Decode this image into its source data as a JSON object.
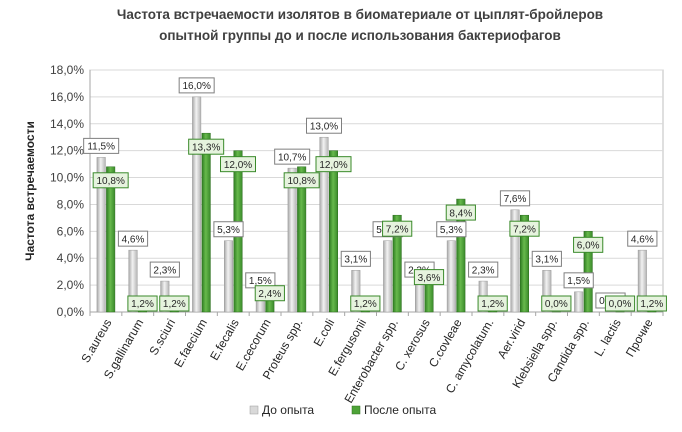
{
  "chart_data": {
    "type": "bar",
    "title_line1": "Частота встречаемости изолятов в биоматериале от цыплят-бройлеров",
    "title_line2": "опытной группы до и после использования бактериофагов",
    "ylabel": "Частота встречаемости",
    "xlabel": "",
    "ylim": [
      0,
      18
    ],
    "y_ticks": [
      "0,0%",
      "2,0%",
      "4,0%",
      "6,0%",
      "8,0%",
      "10,0%",
      "12,0%",
      "14,0%",
      "16,0%",
      "18,0%"
    ],
    "grid": true,
    "legend_position": "bottom",
    "categories": [
      "S.aureus",
      "S.gallinarum",
      "S.sciuri",
      "E.faecium",
      "E.fecalis",
      "E.cecorum",
      "Proteus spp.",
      "E.coli",
      "E.fergusonii",
      "Enterobacter spp.",
      "C. xerosus",
      "C.covleae",
      "C. amycolatum.",
      "Aer.virid",
      "Klebsiella spp.",
      "Candida spp.",
      "L. lactis",
      "Прочие"
    ],
    "series": [
      {
        "name": "До опыта",
        "color": "#d0d0d0",
        "values": [
          11.5,
          4.6,
          2.3,
          16.0,
          5.3,
          1.5,
          10.7,
          13.0,
          3.1,
          5.3,
          2.3,
          5.3,
          2.3,
          7.6,
          3.1,
          1.5,
          0.0,
          4.6
        ],
        "labels": [
          "11,5%",
          "4,6%",
          "2,3%",
          "16,0%",
          "5,3%",
          "1,5%",
          "10,7%",
          "13,0%",
          "3,1%",
          "5,3%",
          "2,3%",
          "5,3%",
          "2,3%",
          "7,6%",
          "3,1%",
          "1,5%",
          "0,0%",
          "4,6%"
        ]
      },
      {
        "name": "После опыта",
        "color": "#4ea338",
        "values": [
          10.8,
          1.2,
          1.2,
          13.3,
          12.0,
          2.4,
          10.8,
          12.0,
          1.2,
          7.2,
          3.6,
          8.4,
          1.2,
          7.2,
          0.0,
          6.0,
          0.0,
          1.2
        ],
        "labels": [
          "10,8%",
          "1,2%",
          "1,2%",
          "13,3%",
          "12,0%",
          "2,4%",
          "10,8%",
          "12,0%",
          "1,2%",
          "7,2%",
          "3,6%",
          "8,4%",
          "1,2%",
          "7,2%",
          "0,0%",
          "6,0%",
          "0,0%",
          "1,2%"
        ]
      }
    ]
  }
}
